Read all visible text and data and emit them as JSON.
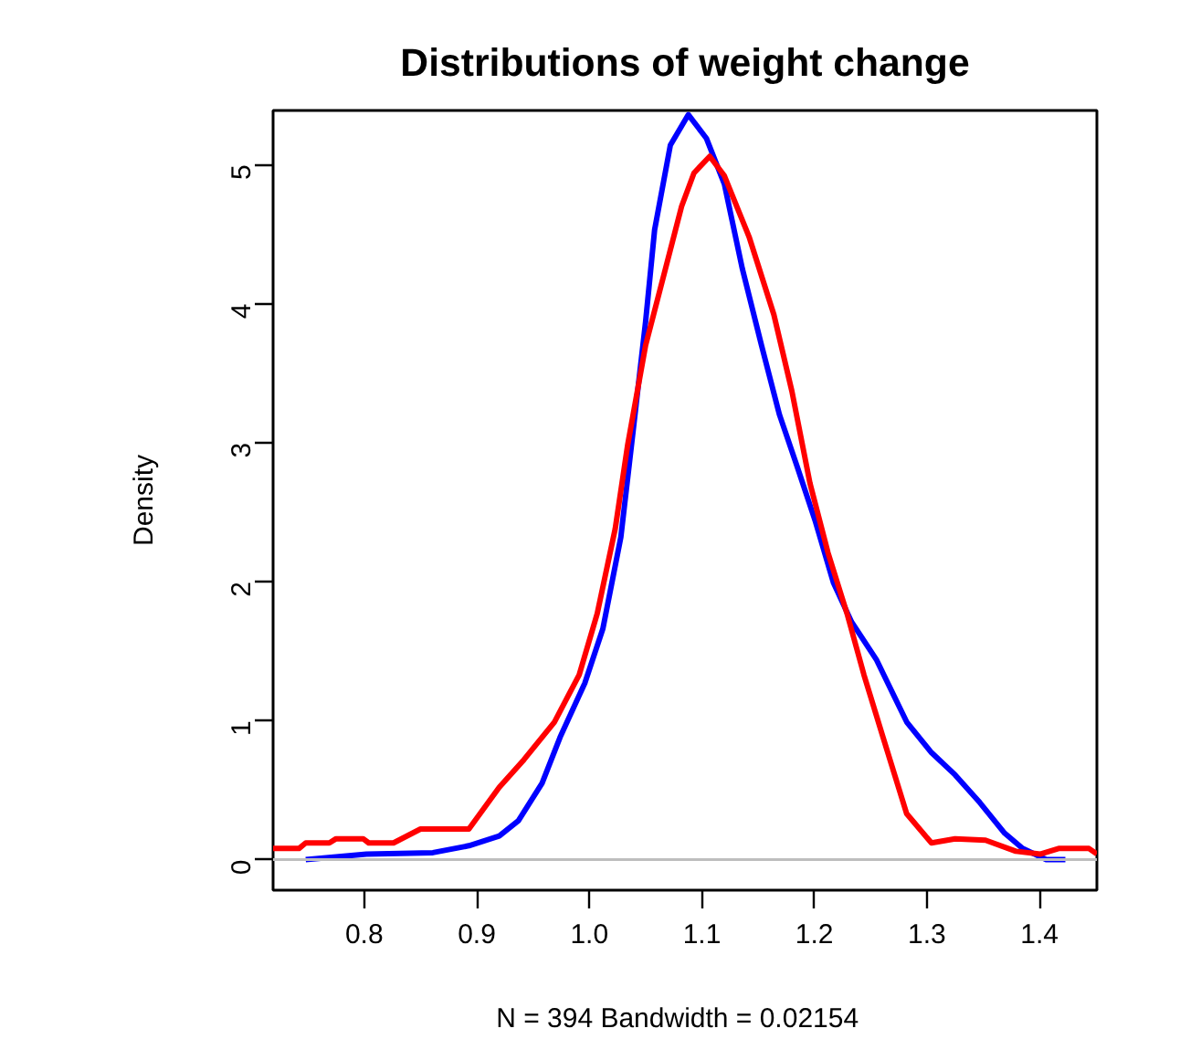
{
  "chart_data": {
    "type": "line",
    "title": "Distributions of weight change",
    "xlabel": "N = 394   Bandwidth = 0.02154",
    "ylabel": "Density",
    "xlim": [
      0.719,
      1.451
    ],
    "ylim": [
      -0.22,
      5.39
    ],
    "xticks": [
      {
        "value": 0.8,
        "label": "0.8"
      },
      {
        "value": 0.9,
        "label": "0.9"
      },
      {
        "value": 1.0,
        "label": "1.0"
      },
      {
        "value": 1.1,
        "label": "1.1"
      },
      {
        "value": 1.2,
        "label": "1.2"
      },
      {
        "value": 1.3,
        "label": "1.3"
      },
      {
        "value": 1.4,
        "label": "1.4"
      }
    ],
    "yticks": [
      0,
      1,
      2,
      3,
      4,
      5
    ],
    "grid": false,
    "line_style": "solid",
    "marker": "none",
    "ref_lines": [
      {
        "axis": "y",
        "value": 0,
        "label": null,
        "color": "#bebebe"
      }
    ],
    "series": [
      {
        "color": "#0000ff",
        "x": [
          0.748,
          0.802,
          0.861,
          0.893,
          0.92,
          0.937,
          0.958,
          0.974,
          0.996,
          1.012,
          1.028,
          1.039,
          1.05,
          1.058,
          1.072,
          1.088,
          1.104,
          1.12,
          1.136,
          1.153,
          1.169,
          1.185,
          1.201,
          1.217,
          1.233,
          1.255,
          1.282,
          1.304,
          1.325,
          1.347,
          1.369,
          1.385,
          1.406,
          1.423
        ],
        "values": [
          0,
          0.04,
          0.05,
          0.1,
          0.17,
          0.28,
          0.55,
          0.88,
          1.27,
          1.66,
          2.32,
          3.09,
          3.87,
          4.53,
          5.14,
          5.36,
          5.19,
          4.86,
          4.25,
          3.7,
          3.2,
          2.82,
          2.43,
          1.99,
          1.71,
          1.44,
          0.99,
          0.77,
          0.61,
          0.41,
          0.19,
          0.08,
          0,
          0
        ]
      },
      {
        "color": "#ff0000",
        "x": [
          0.719,
          0.742,
          0.748,
          0.769,
          0.775,
          0.799,
          0.804,
          0.826,
          0.85,
          0.893,
          0.92,
          0.942,
          0.969,
          0.991,
          1.007,
          1.023,
          1.034,
          1.05,
          1.066,
          1.082,
          1.093,
          1.107,
          1.12,
          1.142,
          1.164,
          1.18,
          1.196,
          1.212,
          1.229,
          1.244,
          1.261,
          1.282,
          1.304,
          1.325,
          1.352,
          1.379,
          1.401,
          1.417,
          1.444,
          1.451
        ],
        "values": [
          0.08,
          0.08,
          0.12,
          0.12,
          0.15,
          0.15,
          0.12,
          0.12,
          0.22,
          0.22,
          0.52,
          0.72,
          0.99,
          1.33,
          1.77,
          2.38,
          2.98,
          3.7,
          4.2,
          4.7,
          4.94,
          5.06,
          4.92,
          4.48,
          3.92,
          3.37,
          2.71,
          2.21,
          1.77,
          1.33,
          0.88,
          0.33,
          0.12,
          0.15,
          0.14,
          0.06,
          0.04,
          0.08,
          0.08,
          0.04
        ]
      }
    ]
  }
}
